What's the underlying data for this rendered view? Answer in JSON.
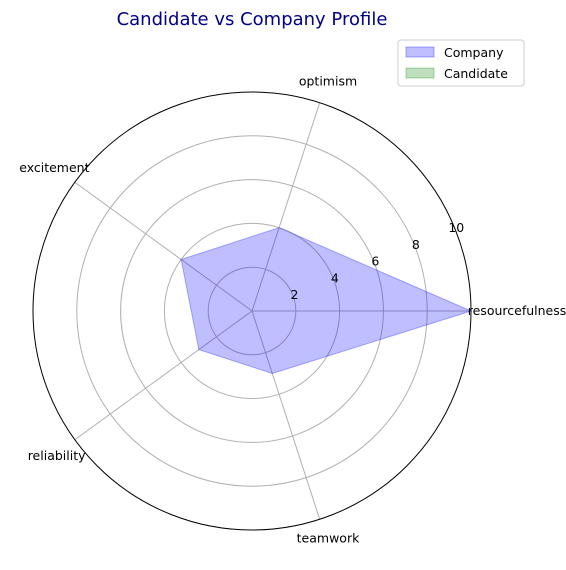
{
  "chart_data": {
    "type": "radar",
    "title": "Candidate vs Company Profile",
    "categories": [
      "resourcefulness",
      "optimism",
      "excitement",
      "reliability",
      "teamwork"
    ],
    "series": [
      {
        "name": "Company",
        "values": [
          10,
          4,
          4,
          3,
          3
        ],
        "fill_color": "#0000ff",
        "fill_opacity": 0.25,
        "stroke_color": "#0000ff"
      },
      {
        "name": "Candidate",
        "values": [
          0,
          0,
          0,
          0,
          0
        ],
        "fill_color": "#008000",
        "fill_opacity": 0.25,
        "stroke_color": "#008000"
      }
    ],
    "rlim": [
      0,
      10
    ],
    "r_ticks": [
      2,
      4,
      6,
      8,
      10
    ],
    "grid": true,
    "legend_position": "top-right"
  }
}
